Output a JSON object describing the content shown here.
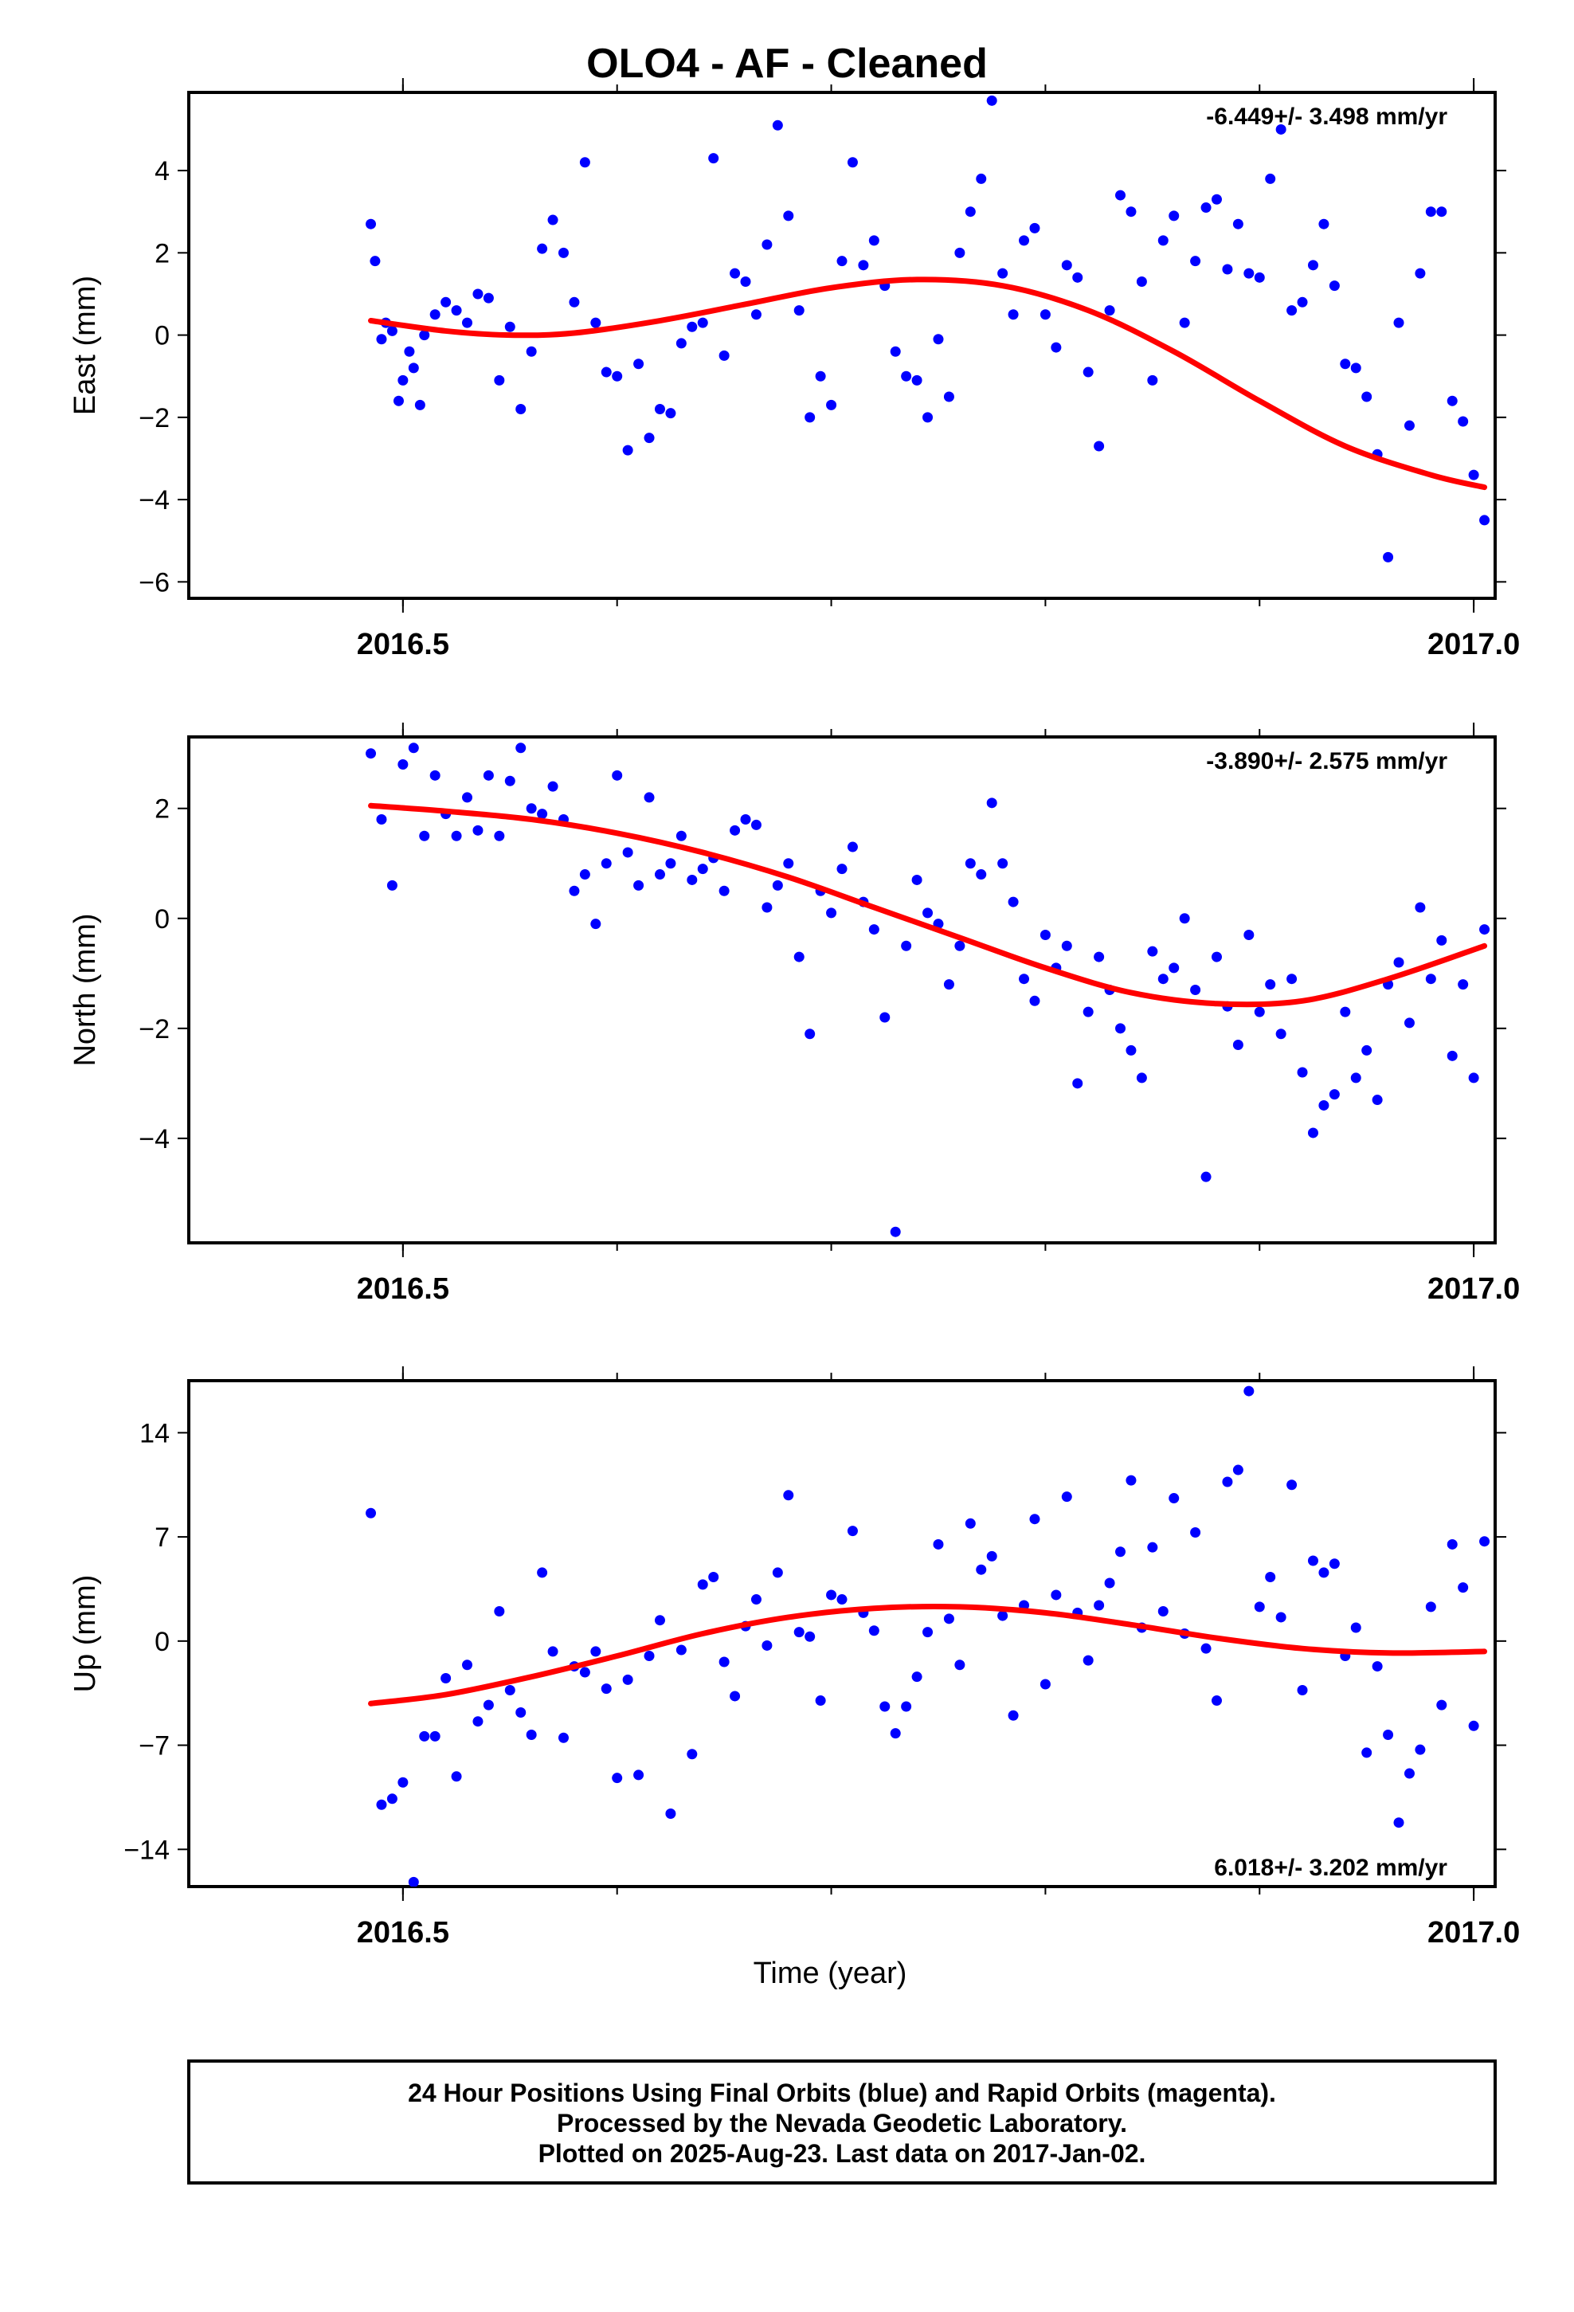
{
  "title": "OLO4  - AF - Cleaned",
  "x_axis_label": "Time (year)",
  "footer": [
    "24 Hour Positions Using Final Orbits (blue) and Rapid Orbits (magenta).",
    "Processed by the Nevada Geodetic Laboratory.",
    "Plotted on 2025-Aug-23. Last data on 2017-Jan-02."
  ],
  "colors": {
    "points": "#0000ff",
    "fit": "#ff0000",
    "frame": "#000000"
  },
  "chart_data": [
    {
      "type": "scatter",
      "component": "East",
      "ylabel": "East (mm)",
      "rate_label": "-6.449+/- 3.498 mm/yr",
      "rate_position": "top-right",
      "xlim": [
        2016.4,
        2017.01
      ],
      "ylim": [
        -6.4,
        5.9
      ],
      "x_ticks": [
        2016.5,
        2017.0
      ],
      "x_tick_labels": [
        "2016.5",
        "2017.0"
      ],
      "y_ticks": [
        -6,
        -4,
        -2,
        0,
        2,
        4
      ],
      "y_tick_labels": [
        "−6",
        "−4",
        "−2",
        "0",
        "2",
        "4"
      ],
      "fit_curve": {
        "x": [
          2016.485,
          2016.52,
          2016.55,
          2016.58,
          2016.62,
          2016.66,
          2016.7,
          2016.74,
          2016.78,
          2016.82,
          2016.86,
          2016.9,
          2016.94,
          2016.98,
          2017.005
        ],
        "y": [
          0.35,
          0.1,
          0.0,
          0.05,
          0.35,
          0.75,
          1.15,
          1.35,
          1.2,
          0.6,
          -0.4,
          -1.6,
          -2.7,
          -3.4,
          -3.7
        ]
      },
      "points": {
        "x": [
          2016.485,
          2016.487,
          2016.49,
          2016.492,
          2016.495,
          2016.498,
          2016.5,
          2016.503,
          2016.505,
          2016.508,
          2016.51,
          2016.515,
          2016.52,
          2016.525,
          2016.53,
          2016.535,
          2016.54,
          2016.545,
          2016.55,
          2016.555,
          2016.56,
          2016.565,
          2016.57,
          2016.575,
          2016.58,
          2016.585,
          2016.59,
          2016.595,
          2016.6,
          2016.605,
          2016.61,
          2016.615,
          2016.62,
          2016.625,
          2016.63,
          2016.635,
          2016.64,
          2016.645,
          2016.65,
          2016.655,
          2016.66,
          2016.665,
          2016.67,
          2016.675,
          2016.68,
          2016.685,
          2016.69,
          2016.695,
          2016.7,
          2016.705,
          2016.71,
          2016.715,
          2016.72,
          2016.725,
          2016.73,
          2016.735,
          2016.74,
          2016.745,
          2016.75,
          2016.755,
          2016.76,
          2016.765,
          2016.77,
          2016.775,
          2016.78,
          2016.785,
          2016.79,
          2016.795,
          2016.8,
          2016.805,
          2016.81,
          2016.815,
          2016.82,
          2016.825,
          2016.83,
          2016.835,
          2016.84,
          2016.845,
          2016.85,
          2016.855,
          2016.86,
          2016.865,
          2016.87,
          2016.875,
          2016.88,
          2016.885,
          2016.89,
          2016.895,
          2016.9,
          2016.905,
          2016.91,
          2016.915,
          2016.92,
          2016.925,
          2016.93,
          2016.935,
          2016.94,
          2016.945,
          2016.95,
          2016.955,
          2016.96,
          2016.965,
          2016.97,
          2016.975,
          2016.98,
          2016.985,
          2016.99,
          2016.995,
          2017.0,
          2017.005
        ],
        "y": [
          2.7,
          1.8,
          -0.1,
          0.3,
          0.1,
          -1.6,
          -1.1,
          -0.4,
          -0.8,
          -1.7,
          0.0,
          0.5,
          0.8,
          0.6,
          0.3,
          1.0,
          0.9,
          -1.1,
          0.2,
          -1.8,
          -0.4,
          2.1,
          2.8,
          2.0,
          0.8,
          4.2,
          0.3,
          -0.9,
          -1.0,
          -2.8,
          -0.7,
          -2.5,
          -1.8,
          -1.9,
          -0.2,
          0.2,
          0.3,
          4.3,
          -0.5,
          1.5,
          1.3,
          0.5,
          2.2,
          5.1,
          2.9,
          0.6,
          -2.0,
          -1.0,
          -1.7,
          1.8,
          4.2,
          1.7,
          2.3,
          1.2,
          -0.4,
          -1.0,
          -1.1,
          -2.0,
          -0.1,
          -1.5,
          2.0,
          3.0,
          3.8,
          5.7,
          1.5,
          0.5,
          2.3,
          2.6,
          0.5,
          -0.3,
          1.7,
          1.4,
          -0.9,
          -2.7,
          0.6,
          3.4,
          3.0,
          1.3,
          -1.1,
          2.3,
          2.9,
          0.3,
          1.8,
          3.1,
          3.3,
          1.6,
          2.7,
          1.5,
          1.4,
          3.8,
          5.0,
          0.6,
          0.8,
          1.7,
          2.7,
          1.2,
          -0.7,
          -0.8,
          -1.5,
          -2.9,
          -5.4,
          0.3,
          -2.2,
          1.5,
          3.0,
          3.0,
          -1.6,
          -2.1,
          -3.4,
          -4.5
        ]
      }
    },
    {
      "type": "scatter",
      "component": "North",
      "ylabel": "North (mm)",
      "rate_label": "-3.890+/- 2.575 mm/yr",
      "rate_position": "top-right",
      "xlim": [
        2016.4,
        2017.01
      ],
      "ylim": [
        -5.9,
        3.3
      ],
      "x_ticks": [
        2016.5,
        2017.0
      ],
      "x_tick_labels": [
        "2016.5",
        "2017.0"
      ],
      "y_ticks": [
        -4,
        -2,
        0,
        2
      ],
      "y_tick_labels": [
        "−4",
        "−2",
        "0",
        "2"
      ],
      "fit_curve": {
        "x": [
          2016.485,
          2016.52,
          2016.56,
          2016.6,
          2016.64,
          2016.68,
          2016.72,
          2016.76,
          2016.8,
          2016.84,
          2016.88,
          2016.92,
          2016.96,
          2017.005
        ],
        "y": [
          2.05,
          1.95,
          1.8,
          1.55,
          1.2,
          0.75,
          0.2,
          -0.35,
          -0.9,
          -1.35,
          -1.55,
          -1.5,
          -1.1,
          -0.5
        ]
      },
      "points": {
        "x": [
          2016.485,
          2016.49,
          2016.495,
          2016.5,
          2016.505,
          2016.51,
          2016.515,
          2016.52,
          2016.525,
          2016.53,
          2016.535,
          2016.54,
          2016.545,
          2016.55,
          2016.555,
          2016.56,
          2016.565,
          2016.57,
          2016.575,
          2016.58,
          2016.585,
          2016.59,
          2016.595,
          2016.6,
          2016.605,
          2016.61,
          2016.615,
          2016.62,
          2016.625,
          2016.63,
          2016.635,
          2016.64,
          2016.645,
          2016.65,
          2016.655,
          2016.66,
          2016.665,
          2016.67,
          2016.675,
          2016.68,
          2016.685,
          2016.69,
          2016.695,
          2016.7,
          2016.705,
          2016.71,
          2016.715,
          2016.72,
          2016.725,
          2016.73,
          2016.735,
          2016.74,
          2016.745,
          2016.75,
          2016.755,
          2016.76,
          2016.765,
          2016.77,
          2016.775,
          2016.78,
          2016.785,
          2016.79,
          2016.795,
          2016.8,
          2016.805,
          2016.81,
          2016.815,
          2016.82,
          2016.825,
          2016.83,
          2016.835,
          2016.84,
          2016.845,
          2016.85,
          2016.855,
          2016.86,
          2016.865,
          2016.87,
          2016.875,
          2016.88,
          2016.885,
          2016.89,
          2016.895,
          2016.9,
          2016.905,
          2016.91,
          2016.915,
          2016.92,
          2016.925,
          2016.93,
          2016.935,
          2016.94,
          2016.945,
          2016.95,
          2016.955,
          2016.96,
          2016.965,
          2016.97,
          2016.975,
          2016.98,
          2016.985,
          2016.99,
          2016.995,
          2017.0,
          2017.005
        ],
        "y": [
          3.0,
          1.8,
          0.6,
          2.8,
          3.1,
          1.5,
          2.6,
          1.9,
          1.5,
          2.2,
          1.6,
          2.6,
          1.5,
          2.5,
          3.1,
          2.0,
          1.9,
          2.4,
          1.8,
          0.5,
          0.8,
          -0.1,
          1.0,
          2.6,
          1.2,
          0.6,
          2.2,
          0.8,
          1.0,
          1.5,
          0.7,
          0.9,
          1.1,
          0.5,
          1.6,
          1.8,
          1.7,
          0.2,
          0.6,
          1.0,
          -0.7,
          -2.1,
          0.5,
          0.1,
          0.9,
          1.3,
          0.3,
          -0.2,
          -1.8,
          -5.7,
          -0.5,
          0.7,
          0.1,
          -0.1,
          -1.2,
          -0.5,
          1.0,
          0.8,
          2.1,
          1.0,
          0.3,
          -1.1,
          -1.5,
          -0.3,
          -0.9,
          -0.5,
          -3.0,
          -1.7,
          -0.7,
          -1.3,
          -2.0,
          -2.4,
          -2.9,
          -0.6,
          -1.1,
          -0.9,
          0.0,
          -1.3,
          -4.7,
          -0.7,
          -1.6,
          -2.3,
          -0.3,
          -1.7,
          -1.2,
          -2.1,
          -1.1,
          -2.8,
          -3.9,
          -3.4,
          -3.2,
          -1.7,
          -2.9,
          -2.4,
          -3.3,
          -1.2,
          -0.8,
          -1.9,
          0.2,
          -1.1,
          -0.4,
          -2.5,
          -1.2,
          -2.9,
          -0.2
        ]
      }
    },
    {
      "type": "scatter",
      "component": "Up",
      "ylabel": "Up (mm)",
      "rate_label": "6.018+/- 3.202 mm/yr",
      "rate_position": "bottom-right",
      "xlim": [
        2016.4,
        2017.01
      ],
      "ylim": [
        -16.5,
        17.5
      ],
      "x_ticks": [
        2016.5,
        2017.0
      ],
      "x_tick_labels": [
        "2016.5",
        "2017.0"
      ],
      "y_ticks": [
        -14,
        -7,
        0,
        7,
        14
      ],
      "y_tick_labels": [
        "−14",
        "−7",
        "0",
        "7",
        "14"
      ],
      "fit_curve": {
        "x": [
          2016.485,
          2016.52,
          2016.56,
          2016.6,
          2016.64,
          2016.68,
          2016.72,
          2016.76,
          2016.8,
          2016.84,
          2016.88,
          2016.92,
          2016.96,
          2017.005
        ],
        "y": [
          -4.2,
          -3.6,
          -2.4,
          -1.0,
          0.5,
          1.6,
          2.2,
          2.3,
          1.9,
          1.1,
          0.2,
          -0.5,
          -0.8,
          -0.7
        ]
      },
      "points": {
        "x": [
          2016.485,
          2016.49,
          2016.495,
          2016.5,
          2016.505,
          2016.51,
          2016.515,
          2016.52,
          2016.525,
          2016.53,
          2016.535,
          2016.54,
          2016.545,
          2016.55,
          2016.555,
          2016.56,
          2016.565,
          2016.57,
          2016.575,
          2016.58,
          2016.585,
          2016.59,
          2016.595,
          2016.6,
          2016.605,
          2016.61,
          2016.615,
          2016.62,
          2016.625,
          2016.63,
          2016.635,
          2016.64,
          2016.645,
          2016.65,
          2016.655,
          2016.66,
          2016.665,
          2016.67,
          2016.675,
          2016.68,
          2016.685,
          2016.69,
          2016.695,
          2016.7,
          2016.705,
          2016.71,
          2016.715,
          2016.72,
          2016.725,
          2016.73,
          2016.735,
          2016.74,
          2016.745,
          2016.75,
          2016.755,
          2016.76,
          2016.765,
          2016.77,
          2016.775,
          2016.78,
          2016.785,
          2016.79,
          2016.795,
          2016.8,
          2016.805,
          2016.81,
          2016.815,
          2016.82,
          2016.825,
          2016.83,
          2016.835,
          2016.84,
          2016.845,
          2016.85,
          2016.855,
          2016.86,
          2016.865,
          2016.87,
          2016.875,
          2016.88,
          2016.885,
          2016.89,
          2016.895,
          2016.9,
          2016.905,
          2016.91,
          2016.915,
          2016.92,
          2016.925,
          2016.93,
          2016.935,
          2016.94,
          2016.945,
          2016.95,
          2016.955,
          2016.96,
          2016.965,
          2016.97,
          2016.975,
          2016.98,
          2016.985,
          2016.99,
          2016.995,
          2017.0,
          2017.005
        ],
        "y": [
          8.6,
          -11.0,
          -10.6,
          -9.5,
          -16.2,
          -6.4,
          -6.4,
          -2.5,
          -9.1,
          -1.6,
          -5.4,
          -4.3,
          2.0,
          -3.3,
          -4.8,
          -6.3,
          4.6,
          -0.7,
          -6.5,
          -1.7,
          -2.1,
          -0.7,
          -3.2,
          -9.2,
          -2.6,
          -9.0,
          -1.0,
          1.4,
          -11.6,
          -0.6,
          -7.6,
          3.8,
          4.3,
          -1.4,
          -3.7,
          1.0,
          2.8,
          -0.3,
          4.6,
          9.8,
          0.6,
          0.3,
          -4.0,
          3.1,
          2.8,
          7.4,
          1.9,
          0.7,
          -4.4,
          -6.2,
          -4.4,
          -2.4,
          0.6,
          6.5,
          1.5,
          -1.6,
          7.9,
          4.8,
          5.7,
          1.7,
          -5.0,
          2.4,
          8.2,
          -2.9,
          3.1,
          9.7,
          1.9,
          -1.3,
          2.4,
          3.9,
          6.0,
          10.8,
          0.9,
          6.3,
          2.0,
          9.6,
          0.5,
          7.3,
          -0.5,
          -4.0,
          10.7,
          11.5,
          16.8,
          2.3,
          4.3,
          1.6,
          10.5,
          -3.3,
          5.4,
          4.6,
          5.2,
          -1.0,
          0.9,
          -7.5,
          -1.7,
          -6.3,
          -12.2,
          -8.9,
          -7.3,
          2.3,
          -4.3,
          6.5,
          3.6,
          -5.7,
          6.7
        ]
      }
    }
  ]
}
